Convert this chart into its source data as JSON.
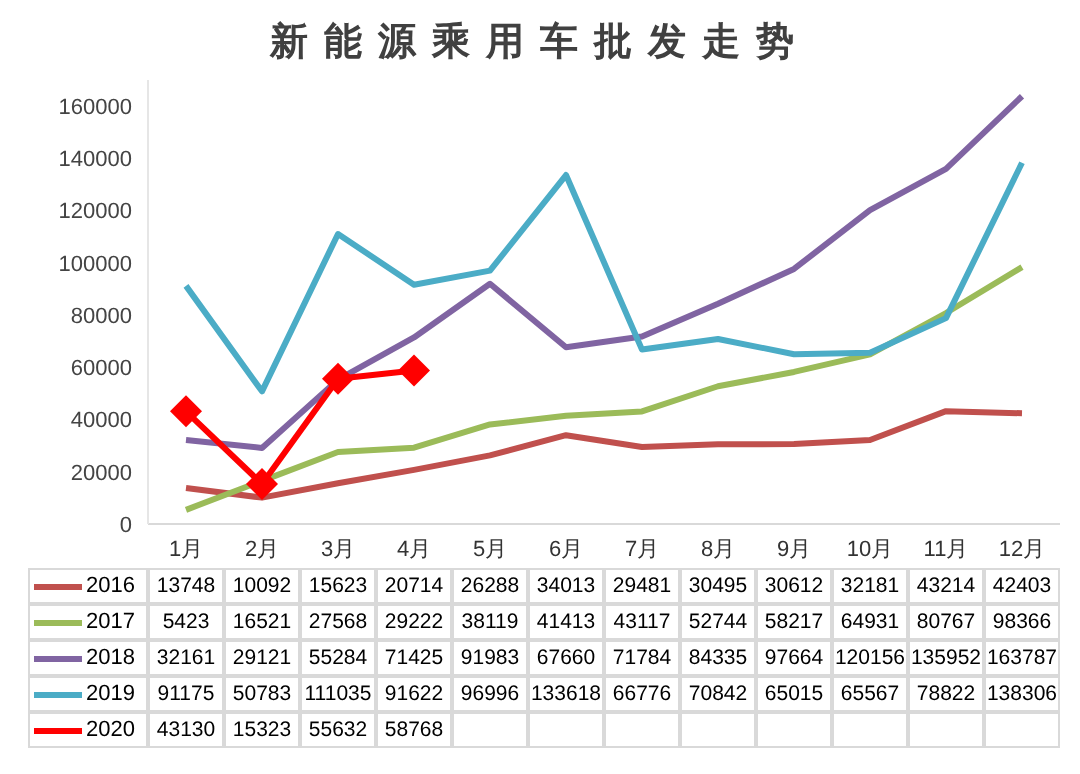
{
  "chart_data": {
    "type": "line",
    "title": "新能源乘用车批发走势",
    "categories": [
      "1月",
      "2月",
      "3月",
      "4月",
      "5月",
      "6月",
      "7月",
      "8月",
      "9月",
      "10月",
      "11月",
      "12月"
    ],
    "series": [
      {
        "name": "2016",
        "color": "#c0504d",
        "marker": "none",
        "values": [
          13748,
          10092,
          15623,
          20714,
          26288,
          34013,
          29481,
          30495,
          30612,
          32181,
          43214,
          42403
        ]
      },
      {
        "name": "2017",
        "color": "#9bbb59",
        "marker": "none",
        "values": [
          5423,
          16521,
          27568,
          29222,
          38119,
          41413,
          43117,
          52744,
          58217,
          64931,
          80767,
          98366
        ]
      },
      {
        "name": "2018",
        "color": "#8064a2",
        "marker": "none",
        "values": [
          32161,
          29121,
          55284,
          71425,
          91983,
          67660,
          71784,
          84335,
          97664,
          120156,
          135952,
          163787
        ]
      },
      {
        "name": "2019",
        "color": "#4bacc6",
        "marker": "none",
        "values": [
          91175,
          50783,
          111035,
          91622,
          96996,
          133618,
          66776,
          70842,
          65015,
          65567,
          78822,
          138306
        ]
      },
      {
        "name": "2020",
        "color": "#ff0000",
        "marker": "diamond",
        "values": [
          43130,
          15323,
          55632,
          58768,
          null,
          null,
          null,
          null,
          null,
          null,
          null,
          null
        ]
      }
    ],
    "ylim": [
      0,
      170000
    ],
    "yticks": [
      0,
      20000,
      40000,
      60000,
      80000,
      100000,
      120000,
      140000,
      160000
    ],
    "legend": "bottom",
    "data_labels": true
  }
}
